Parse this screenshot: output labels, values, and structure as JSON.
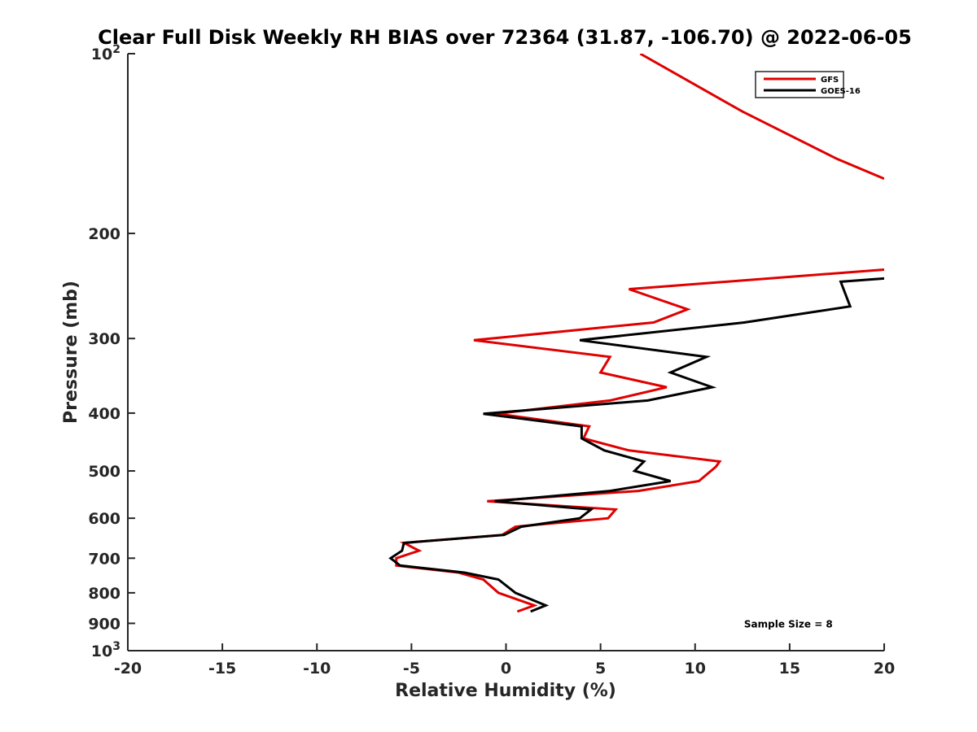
{
  "chart_data": {
    "type": "line",
    "title": "Clear Full Disk Weekly RH BIAS over 72364 (31.87, -106.70) @ 2022-06-05",
    "xlabel": "Relative Humidity (%)",
    "ylabel": "Pressure (mb)",
    "xlim": [
      -20,
      20
    ],
    "ylim": [
      100,
      1000
    ],
    "y_scale": "log",
    "y_reversed": true,
    "grid": false,
    "legend_position": "top-right",
    "x_ticks": [
      {
        "value": -20,
        "label": "-20"
      },
      {
        "value": -15,
        "label": "-15"
      },
      {
        "value": -10,
        "label": "-10"
      },
      {
        "value": -5,
        "label": "-5"
      },
      {
        "value": 0,
        "label": "0"
      },
      {
        "value": 5,
        "label": "5"
      },
      {
        "value": 10,
        "label": "10"
      },
      {
        "value": 15,
        "label": "15"
      },
      {
        "value": 20,
        "label": "20"
      }
    ],
    "y_ticks": [
      {
        "value": 100,
        "label": "10",
        "sup": "2"
      },
      {
        "value": 200,
        "label": "200"
      },
      {
        "value": 300,
        "label": "300"
      },
      {
        "value": 400,
        "label": "400"
      },
      {
        "value": 500,
        "label": "500"
      },
      {
        "value": 600,
        "label": "600"
      },
      {
        "value": 700,
        "label": "700"
      },
      {
        "value": 800,
        "label": "800"
      },
      {
        "value": 900,
        "label": "900"
      },
      {
        "value": 1000,
        "label": "10",
        "sup": "3"
      }
    ],
    "series": [
      {
        "name": "GFS",
        "color": "#e00000",
        "segments": [
          [
            [
              7.1,
              100
            ],
            [
              12.5,
              125
            ],
            [
              17.5,
              150
            ],
            [
              20.0,
              162
            ]
          ],
          [
            [
              20.0,
              230
            ],
            [
              6.5,
              248
            ],
            [
              9.6,
              268
            ],
            [
              7.8,
              282
            ],
            [
              -1.7,
              302
            ],
            [
              5.5,
              322
            ],
            [
              5.0,
              342
            ],
            [
              8.5,
              362
            ],
            [
              5.5,
              381
            ],
            [
              -0.5,
              401
            ],
            [
              4.4,
              421
            ],
            [
              4.1,
              441
            ],
            [
              6.5,
              462
            ],
            [
              11.3,
              482
            ],
            [
              11.1,
              492
            ],
            [
              10.2,
              520
            ],
            [
              7.0,
              540
            ],
            [
              -1.0,
              562
            ],
            [
              5.8,
              580
            ],
            [
              5.4,
              600
            ],
            [
              0.5,
              620
            ],
            [
              -0.2,
              640
            ],
            [
              -5.4,
              660
            ],
            [
              -4.6,
              680
            ],
            [
              -5.8,
              700
            ],
            [
              -5.8,
              720
            ],
            [
              -2.5,
              740
            ],
            [
              -1.2,
              760
            ],
            [
              -0.4,
              800
            ],
            [
              1.5,
              840
            ],
            [
              0.6,
              860
            ]
          ]
        ]
      },
      {
        "name": "GOES-16",
        "color": "#000000",
        "segments": [
          [
            [
              20.0,
              238
            ],
            [
              17.7,
              241
            ],
            [
              18.2,
              265
            ],
            [
              12.6,
              282
            ],
            [
              3.9,
              302
            ],
            [
              10.6,
              322
            ],
            [
              8.7,
              342
            ],
            [
              10.9,
              362
            ],
            [
              7.5,
              381
            ],
            [
              -1.2,
              401
            ],
            [
              4.0,
              421
            ],
            [
              4.0,
              441
            ],
            [
              5.2,
              462
            ],
            [
              7.3,
              482
            ],
            [
              6.8,
              500
            ],
            [
              8.7,
              520
            ],
            [
              5.5,
              540
            ],
            [
              -0.6,
              562
            ],
            [
              4.5,
              580
            ],
            [
              3.9,
              600
            ],
            [
              0.8,
              620
            ],
            [
              -0.1,
              640
            ],
            [
              -5.4,
              660
            ],
            [
              -5.5,
              680
            ],
            [
              -6.1,
              700
            ],
            [
              -5.6,
              720
            ],
            [
              -2.2,
              740
            ],
            [
              -0.4,
              760
            ],
            [
              0.5,
              800
            ],
            [
              2.1,
              840
            ],
            [
              1.3,
              860
            ]
          ]
        ]
      }
    ],
    "annotations": [
      {
        "text": "Sample Size = 8",
        "x": 15,
        "y": 900
      }
    ]
  }
}
